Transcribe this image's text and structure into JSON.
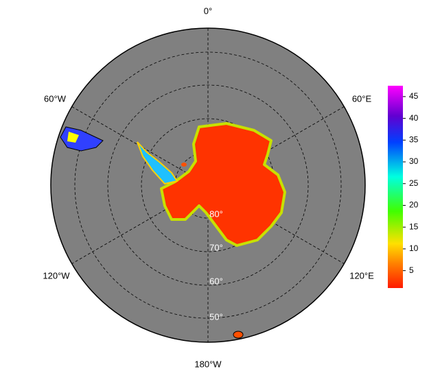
{
  "longitude_labels": [
    "0°",
    "60°E",
    "120°E",
    "180°W",
    "120°W",
    "60°W"
  ],
  "latitude_labels": [
    "80°",
    "70°",
    "60°",
    "50°"
  ],
  "colorbar": {
    "lim": [
      1,
      47.5
    ],
    "ticks": [
      5,
      10,
      15,
      20,
      25,
      30,
      35,
      40,
      45
    ]
  }
}
